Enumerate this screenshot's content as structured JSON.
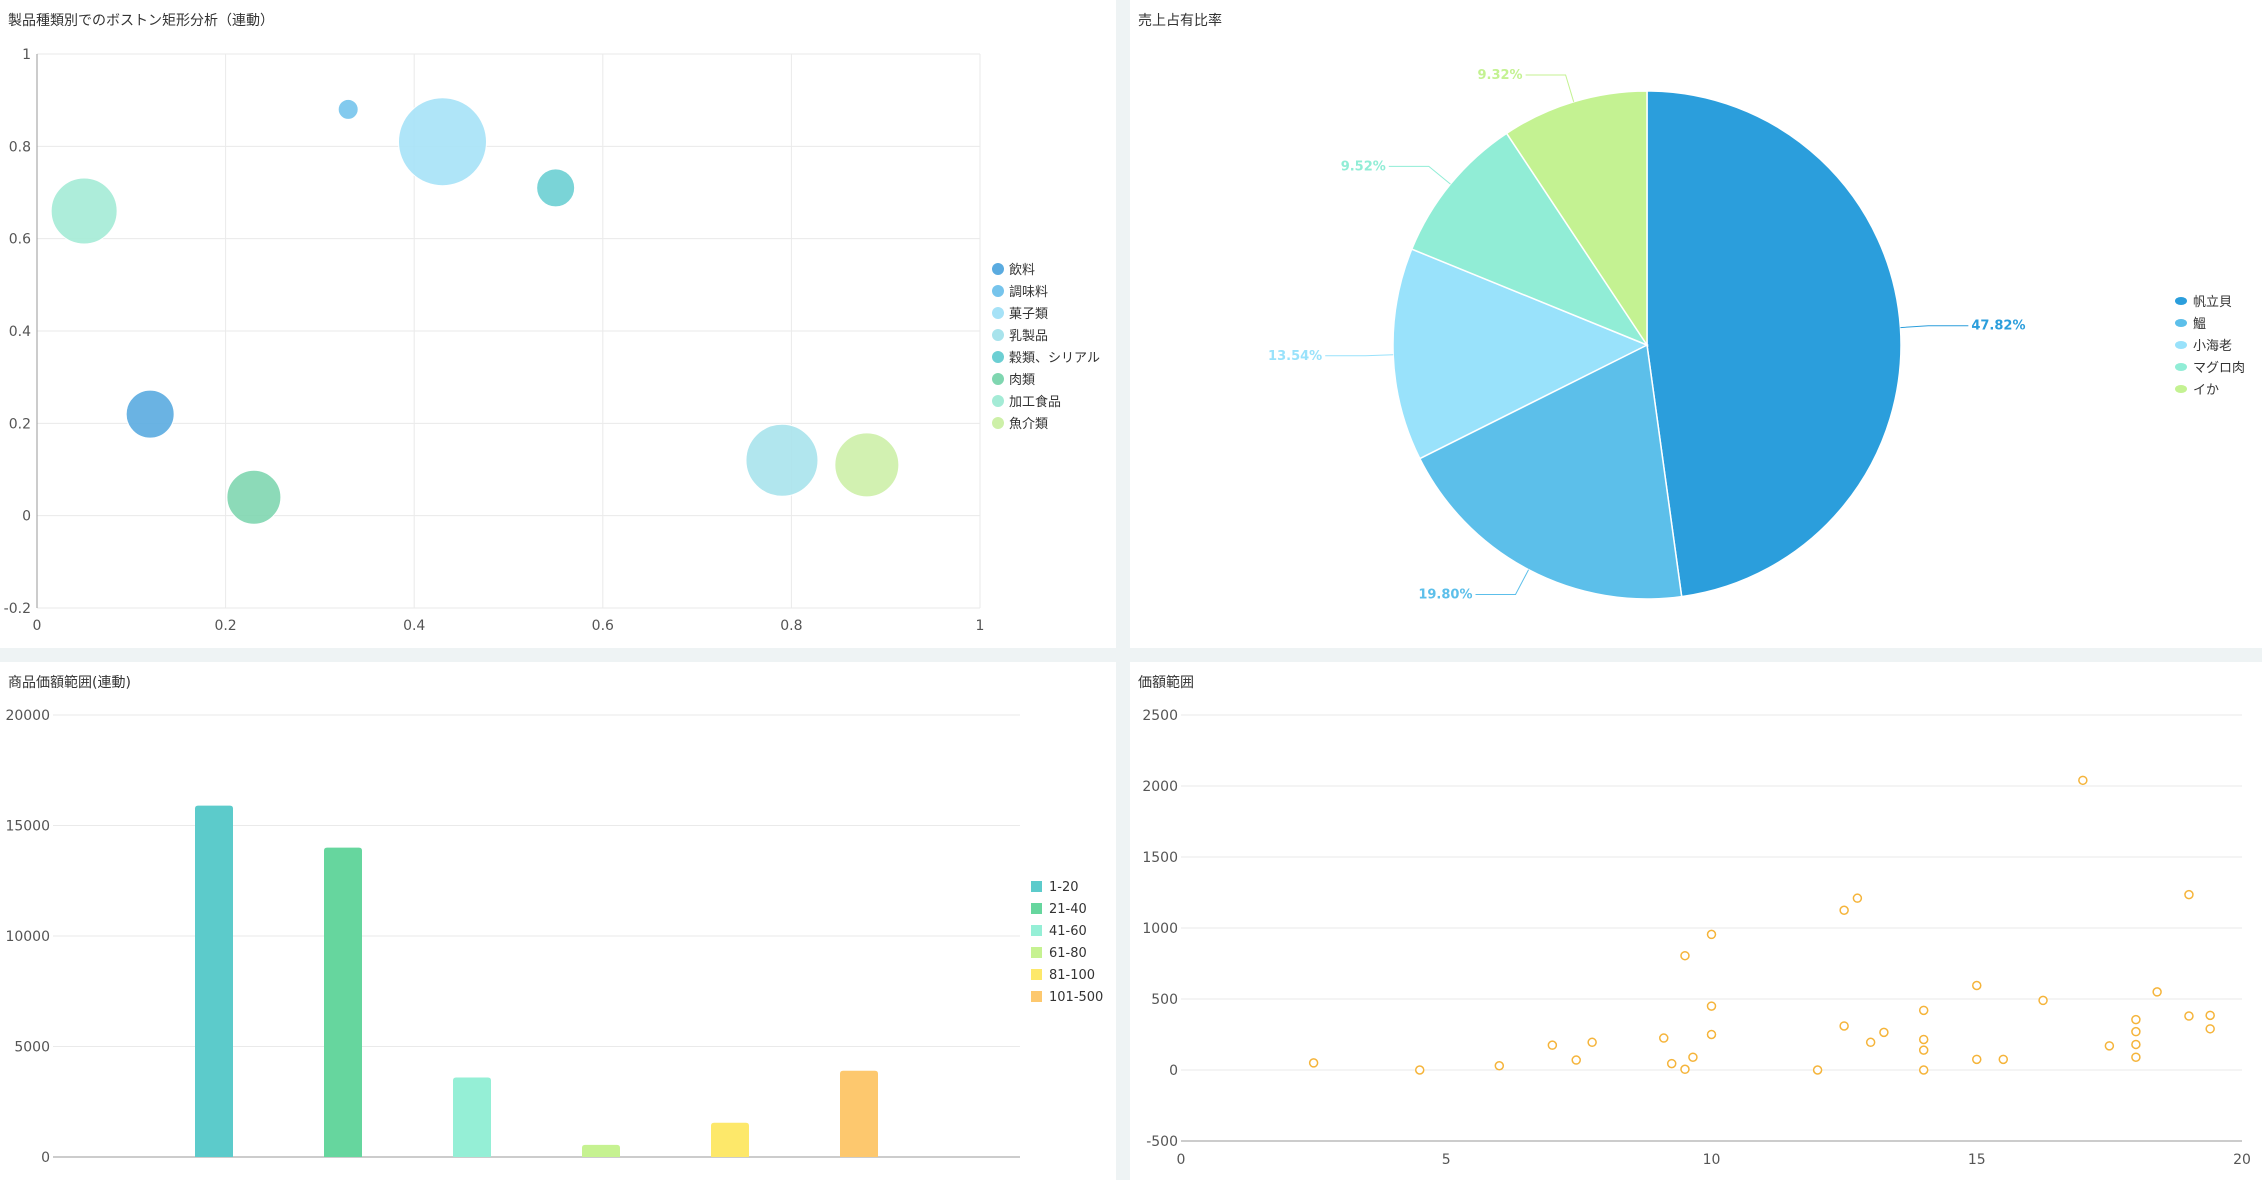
{
  "panels": {
    "boston": {
      "title": "製品種類別でのボストン矩形分析（連動）"
    },
    "share": {
      "title": "売上占有比率"
    },
    "pricebar": {
      "title": "商品価額範囲(連動)"
    },
    "pricescatter": {
      "title": "価額範囲"
    }
  },
  "chart_data": [
    {
      "type": "scatter",
      "title": "製品種類別でのボストン矩形分析（連動）",
      "xlim": [
        0,
        1
      ],
      "ylim": [
        -0.2,
        1
      ],
      "xticks": [
        0,
        0.2,
        0.4,
        0.6,
        0.8,
        1
      ],
      "yticks": [
        -0.2,
        0,
        0.2,
        0.4,
        0.6,
        0.8,
        1
      ],
      "grid": true,
      "legend": "right",
      "series": [
        {
          "name": "飲料",
          "color": "#5aabe0",
          "points": [
            {
              "x": 0.12,
              "y": 0.22,
              "size": 48
            }
          ]
        },
        {
          "name": "調味料",
          "color": "#76c4ec",
          "points": [
            {
              "x": 0.33,
              "y": 0.88,
              "size": 20
            }
          ]
        },
        {
          "name": "菓子類",
          "color": "#a6e2f7",
          "points": [
            {
              "x": 0.43,
              "y": 0.81,
              "size": 88
            }
          ]
        },
        {
          "name": "乳製品",
          "color": "#a8e3ec",
          "points": [
            {
              "x": 0.79,
              "y": 0.12,
              "size": 72
            }
          ]
        },
        {
          "name": "穀類、シリアル",
          "color": "#6ccfd3",
          "points": [
            {
              "x": 0.55,
              "y": 0.71,
              "size": 38
            }
          ]
        },
        {
          "name": "肉類",
          "color": "#7fd6b0",
          "points": [
            {
              "x": 0.23,
              "y": 0.04,
              "size": 54
            }
          ]
        },
        {
          "name": "加工食品",
          "color": "#a4ebd6",
          "points": [
            {
              "x": 0.05,
              "y": 0.66,
              "size": 66
            }
          ]
        },
        {
          "name": "魚介類",
          "color": "#cdf0a8",
          "points": [
            {
              "x": 0.88,
              "y": 0.11,
              "size": 64
            }
          ]
        }
      ]
    },
    {
      "type": "pie",
      "title": "売上占有比率",
      "legend": "right",
      "slices": [
        {
          "name": "帆立貝",
          "value": 47.82,
          "label": "47.82%",
          "color": "#2b9edc"
        },
        {
          "name": "鰮",
          "value": 19.8,
          "label": "19.80%",
          "color": "#5cbfea"
        },
        {
          "name": "小海老",
          "value": 13.54,
          "label": "13.54%",
          "color": "#99e2fb"
        },
        {
          "name": "マグロ肉",
          "value": 9.52,
          "label": "9.52%",
          "color": "#91edd6"
        },
        {
          "name": "イか",
          "value": 9.32,
          "label": "9.32%",
          "color": "#c4f292"
        }
      ]
    },
    {
      "type": "bar",
      "title": "商品価額範囲(連動)",
      "categories": [
        "1-20",
        "21-40",
        "41-60",
        "61-80",
        "81-100",
        "101-500"
      ],
      "values": [
        15900,
        14000,
        3600,
        550,
        1550,
        3900
      ],
      "colors": [
        "#5ccbcb",
        "#66d69e",
        "#95efd6",
        "#c6f291",
        "#fde86a",
        "#fdc86e"
      ],
      "ylim": [
        0,
        20000
      ],
      "yticks": [
        0,
        5000,
        10000,
        15000,
        20000
      ],
      "legend": "right",
      "grid": true
    },
    {
      "type": "scatter",
      "title": "価額範囲",
      "xlim": [
        0,
        20
      ],
      "ylim": [
        -500,
        2500
      ],
      "xticks": [
        0,
        5,
        10,
        15,
        20
      ],
      "yticks": [
        -500,
        0,
        500,
        1000,
        1500,
        2000,
        2500
      ],
      "grid": true,
      "color": "#f5b43a",
      "points": [
        [
          2.5,
          50
        ],
        [
          4.5,
          0
        ],
        [
          6,
          30
        ],
        [
          7,
          175
        ],
        [
          7.45,
          70
        ],
        [
          7.75,
          195
        ],
        [
          9.1,
          225
        ],
        [
          9.25,
          45
        ],
        [
          9.5,
          5
        ],
        [
          9.5,
          805
        ],
        [
          9.65,
          90
        ],
        [
          10,
          955
        ],
        [
          10,
          450
        ],
        [
          10,
          250
        ],
        [
          12,
          0
        ],
        [
          12.5,
          1125
        ],
        [
          12.5,
          310
        ],
        [
          12.75,
          1210
        ],
        [
          13,
          195
        ],
        [
          13.25,
          265
        ],
        [
          14,
          420
        ],
        [
          14,
          215
        ],
        [
          14,
          140
        ],
        [
          14,
          0
        ],
        [
          15,
          595
        ],
        [
          15,
          75
        ],
        [
          15.5,
          75
        ],
        [
          16.25,
          490
        ],
        [
          17,
          2040
        ],
        [
          17.5,
          170
        ],
        [
          18,
          355
        ],
        [
          18,
          270
        ],
        [
          18,
          180
        ],
        [
          18,
          90
        ],
        [
          18.4,
          550
        ],
        [
          19,
          1235
        ],
        [
          19,
          380
        ],
        [
          19.4,
          385
        ],
        [
          19.4,
          290
        ]
      ]
    }
  ]
}
